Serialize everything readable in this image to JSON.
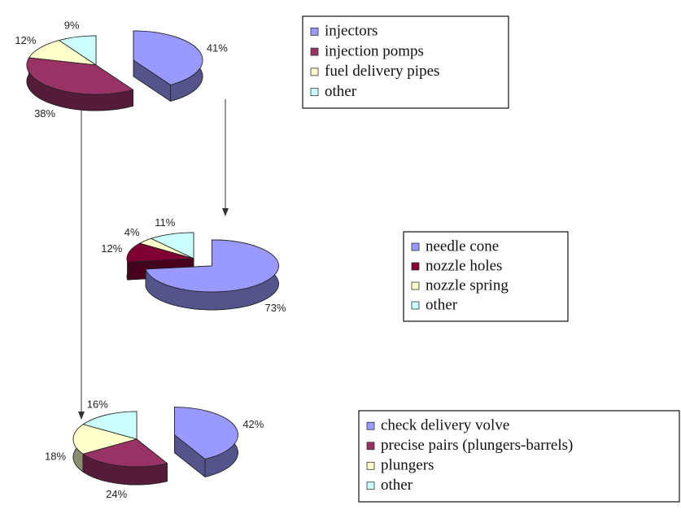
{
  "chart_data": [
    {
      "type": "pie",
      "categories": [
        "injectors",
        "injection pomps",
        "fuel delivery pipes",
        "other"
      ],
      "values": [
        41,
        38,
        12,
        9
      ],
      "value_labels": [
        "41%",
        "38%",
        "12%",
        "9%"
      ],
      "colors": [
        "#9999ff",
        "#993366",
        "#ffffcc",
        "#ccffff"
      ]
    },
    {
      "type": "pie",
      "categories": [
        "needle cone",
        "nozzle holes",
        "nozzle spring",
        "other"
      ],
      "values": [
        73,
        12,
        4,
        11
      ],
      "value_labels": [
        "73%",
        "12%",
        "4%",
        "11%"
      ],
      "colors": [
        "#9999ff",
        "#800033",
        "#ffffcc",
        "#ccffff"
      ]
    },
    {
      "type": "pie",
      "categories": [
        "check delivery volve",
        "precise pairs (plungers-barrels)",
        "plungers",
        "other"
      ],
      "values": [
        42,
        24,
        18,
        16
      ],
      "value_labels": [
        "42%",
        "24%",
        "18%",
        "16%"
      ],
      "colors": [
        "#9999ff",
        "#993366",
        "#ffffcc",
        "#ccffff"
      ]
    }
  ]
}
